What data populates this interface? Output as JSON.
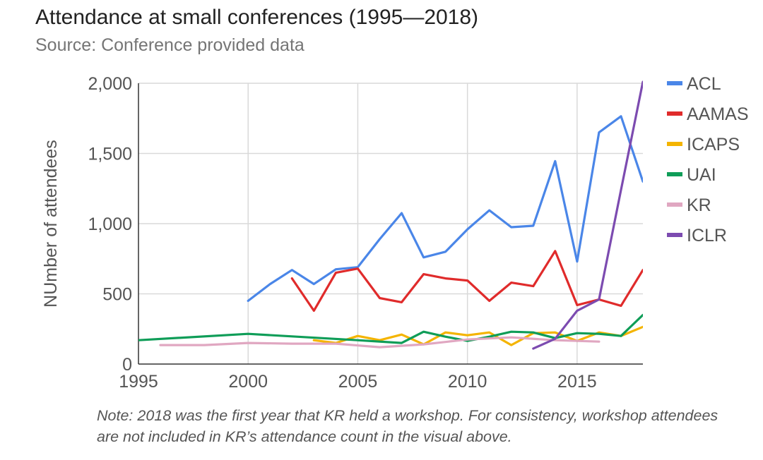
{
  "header": {
    "title": "Attendance at small conferences (1995—2018)",
    "subtitle": "Source: Conference provided data"
  },
  "note": "Note: 2018 was the first year that KR held a workshop. For consistency, workshop attendees are not included in KR’s attendance count in the visual above.",
  "chart_data": {
    "type": "line",
    "title": "Attendance at small conferences (1995—2018)",
    "subtitle": "Source: Conference provided data",
    "xlabel": "",
    "ylabel": "NUmber of attendees",
    "xlim": [
      1995,
      2018
    ],
    "ylim": [
      0,
      2000
    ],
    "xticks": [
      1995,
      2000,
      2005,
      2010,
      2015
    ],
    "xtick_labels": [
      "1995",
      "2000",
      "2005",
      "2010",
      "2015"
    ],
    "yticks": [
      0,
      500,
      1000,
      1500,
      2000
    ],
    "ytick_labels": [
      "0",
      "500",
      "1,000",
      "1,500",
      "2,000"
    ],
    "grid": true,
    "legend_position": "right",
    "series": [
      {
        "name": "ACL",
        "color": "#4a86e8",
        "x": [
          2000,
          2001,
          2002,
          2003,
          2004,
          2005,
          2006,
          2007,
          2008,
          2009,
          2010,
          2011,
          2012,
          2013,
          2014,
          2015,
          2016,
          2017,
          2018
        ],
        "y": [
          450,
          570,
          670,
          570,
          675,
          690,
          890,
          1075,
          760,
          800,
          960,
          1095,
          975,
          985,
          1445,
          730,
          1650,
          1765,
          1300
        ]
      },
      {
        "name": "AAMAS",
        "color": "#e02b2b",
        "x": [
          2002,
          2003,
          2004,
          2005,
          2006,
          2007,
          2008,
          2009,
          2010,
          2011,
          2012,
          2013,
          2014,
          2015,
          2016,
          2017,
          2018
        ],
        "y": [
          610,
          380,
          650,
          680,
          470,
          440,
          640,
          610,
          595,
          450,
          580,
          555,
          805,
          420,
          460,
          415,
          670
        ]
      },
      {
        "name": "ICAPS",
        "color": "#f4b400",
        "x": [
          2003,
          2004,
          2005,
          2006,
          2007,
          2008,
          2009,
          2010,
          2011,
          2012,
          2013,
          2014,
          2015,
          2016,
          2017,
          2018
        ],
        "y": [
          170,
          150,
          200,
          170,
          210,
          140,
          225,
          205,
          225,
          135,
          220,
          225,
          165,
          225,
          200,
          265
        ]
      },
      {
        "name": "UAI",
        "color": "#0f9d58",
        "x": [
          1995,
          2000,
          2005,
          2007,
          2008,
          2009,
          2010,
          2011,
          2012,
          2013,
          2014,
          2015,
          2016,
          2017,
          2018
        ],
        "y": [
          170,
          215,
          170,
          150,
          230,
          195,
          165,
          195,
          230,
          225,
          185,
          220,
          215,
          200,
          350
        ]
      },
      {
        "name": "KR",
        "color": "#e0a7c1",
        "x": [
          1996,
          1998,
          2000,
          2002,
          2004,
          2006,
          2008,
          2010,
          2012,
          2014,
          2016
        ],
        "y": [
          135,
          135,
          150,
          145,
          145,
          120,
          140,
          175,
          190,
          170,
          160
        ]
      },
      {
        "name": "ICLR",
        "color": "#7c4bb0",
        "x": [
          2013,
          2014,
          2015,
          2016,
          2017,
          2018
        ],
        "y": [
          110,
          180,
          380,
          460,
          1240,
          2010
        ]
      }
    ]
  }
}
